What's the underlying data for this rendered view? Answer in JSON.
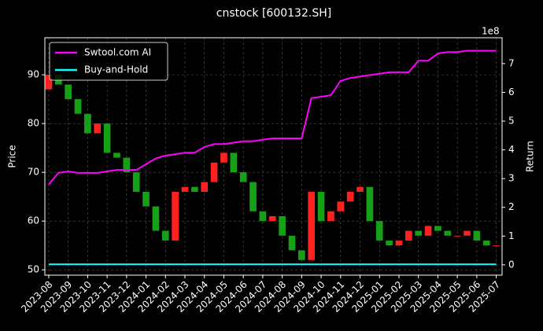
{
  "chart_data": {
    "type": "candlestick",
    "title": "cnstock [600132.SH]",
    "y_label": "Price",
    "y2_label": "Return",
    "y2_offset_label": "1e8",
    "x": [
      0,
      0.5,
      1,
      1.5,
      2,
      2.5,
      3,
      3.5,
      4,
      4.5,
      5,
      5.5,
      6,
      6.5,
      7,
      7.5,
      8,
      8.5,
      9,
      9.5,
      10,
      10.5,
      11,
      11.5,
      12,
      12.5,
      13,
      13.5,
      14,
      14.5,
      15,
      15.5,
      16,
      16.5,
      17,
      17.5,
      18,
      18.5,
      19,
      19.5,
      20,
      20.5,
      21,
      21.5,
      22,
      22.5,
      23
    ],
    "open": [
      87,
      90,
      88,
      85,
      82,
      78,
      80,
      74,
      73,
      70,
      66,
      63,
      58,
      56,
      66,
      67,
      66,
      68,
      72,
      74,
      70,
      68,
      62,
      60,
      61,
      57,
      54,
      52,
      66,
      60,
      62,
      64,
      66,
      67,
      60,
      56,
      55,
      56,
      58,
      57,
      59,
      58,
      57,
      57,
      58,
      56,
      55
    ],
    "close": [
      90,
      88,
      85,
      82,
      78,
      80,
      74,
      73,
      70,
      66,
      63,
      58,
      56,
      66,
      67,
      66,
      68,
      72,
      74,
      70,
      68,
      62,
      60,
      61,
      57,
      54,
      52,
      66,
      60,
      62,
      64,
      66,
      67,
      60,
      56,
      55,
      56,
      58,
      57,
      59,
      58,
      57,
      57,
      58,
      56,
      55,
      55
    ],
    "up_color": "#ff2020",
    "down_color": "#16a016",
    "series": [
      {
        "name": "Swtool.com AI",
        "color": "#ff00ff",
        "axis": "y2",
        "values": [
          2.8,
          3.2,
          3.25,
          3.2,
          3.2,
          3.2,
          3.25,
          3.3,
          3.3,
          3.3,
          3.5,
          3.7,
          3.8,
          3.85,
          3.9,
          3.9,
          4.1,
          4.2,
          4.2,
          4.25,
          4.3,
          4.3,
          4.35,
          4.4,
          4.4,
          4.4,
          4.4,
          5.8,
          5.85,
          5.9,
          6.4,
          6.5,
          6.55,
          6.6,
          6.65,
          6.7,
          6.7,
          6.7,
          7.1,
          7.1,
          7.35,
          7.4,
          7.4,
          7.45,
          7.45,
          7.45,
          7.45
        ]
      },
      {
        "name": "Buy-and-Hold",
        "color": "#00ffff",
        "axis": "y2",
        "values": [
          0.02,
          0.02,
          0.02,
          0.02,
          0.02,
          0.02,
          0.02,
          0.02,
          0.02,
          0.02,
          0.02,
          0.02,
          0.02,
          0.02,
          0.02,
          0.02,
          0.02,
          0.02,
          0.02,
          0.02,
          0.02,
          0.02,
          0.02,
          0.02,
          0.02,
          0.02,
          0.02,
          0.02,
          0.02,
          0.02,
          0.02,
          0.02,
          0.02,
          0.02,
          0.02,
          0.02,
          0.02,
          0.02,
          0.02,
          0.02,
          0.02,
          0.02,
          0.02,
          0.02,
          0.02,
          0.02,
          0.02
        ]
      }
    ],
    "xlim": [
      -0.2,
      23.3
    ],
    "xticks": [
      {
        "value": 0,
        "label": "2023-08"
      },
      {
        "value": 1,
        "label": "2023-09"
      },
      {
        "value": 2,
        "label": "2023-10"
      },
      {
        "value": 3,
        "label": "2023-11"
      },
      {
        "value": 4,
        "label": "2023-12"
      },
      {
        "value": 5,
        "label": "2024-01"
      },
      {
        "value": 6,
        "label": "2024-02"
      },
      {
        "value": 7,
        "label": "2024-03"
      },
      {
        "value": 8,
        "label": "2024-04"
      },
      {
        "value": 9,
        "label": "2024-05"
      },
      {
        "value": 10,
        "label": "2024-06"
      },
      {
        "value": 11,
        "label": "2024-07"
      },
      {
        "value": 12,
        "label": "2024-08"
      },
      {
        "value": 13,
        "label": "2024-09"
      },
      {
        "value": 14,
        "label": "2024-10"
      },
      {
        "value": 15,
        "label": "2024-11"
      },
      {
        "value": 16,
        "label": "2024-12"
      },
      {
        "value": 17,
        "label": "2025-01"
      },
      {
        "value": 18,
        "label": "2025-02"
      },
      {
        "value": 19,
        "label": "2025-03"
      },
      {
        "value": 20,
        "label": "2025-04"
      },
      {
        "value": 21,
        "label": "2025-05"
      },
      {
        "value": 22,
        "label": "2025-06"
      },
      {
        "value": 23,
        "label": "2025-07"
      }
    ],
    "ylim": [
      48.9,
      97.6
    ],
    "yticks": [
      50,
      60,
      70,
      80,
      90
    ],
    "y2lim": [
      -0.36,
      7.9
    ],
    "y2ticks": [
      0,
      1,
      2,
      3,
      4,
      5,
      6,
      7
    ],
    "grid": true,
    "legend": "upper left"
  }
}
